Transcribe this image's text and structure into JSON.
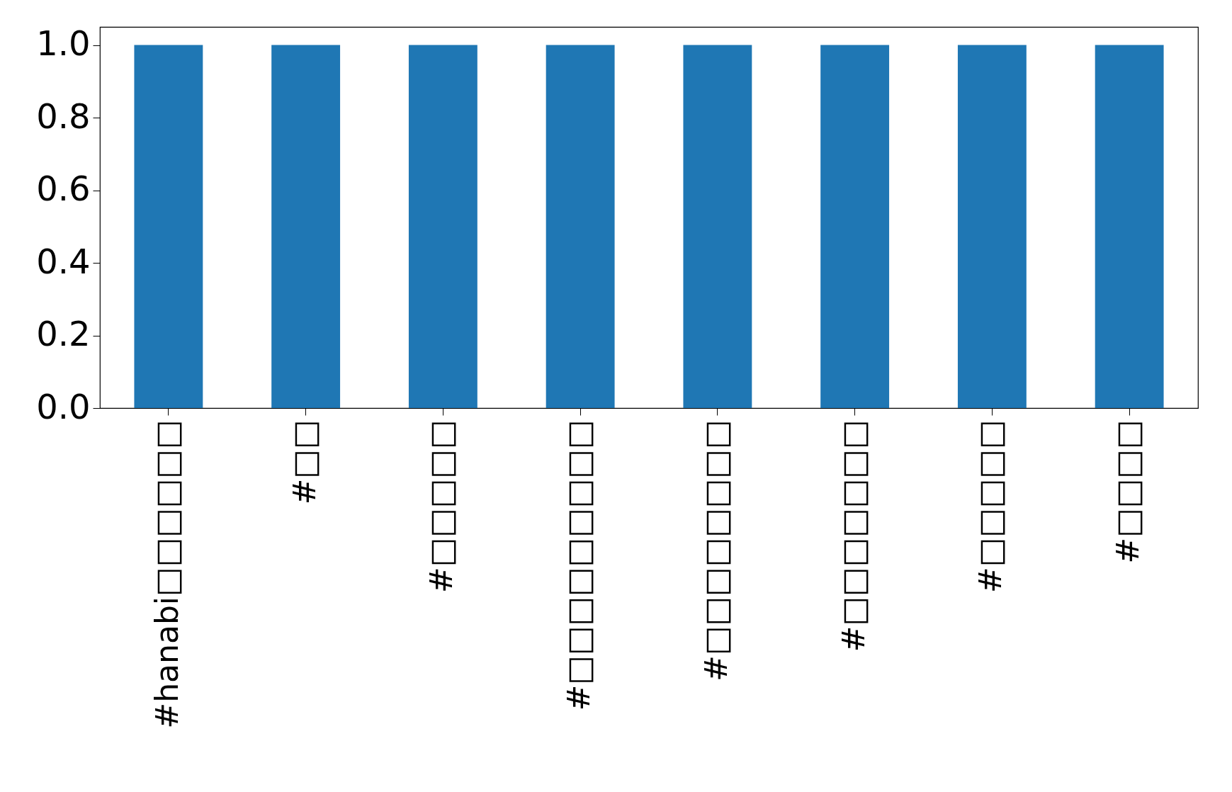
{
  "chart_data": {
    "type": "bar",
    "categories": [
      "#hanabi□□□□□□",
      "#□□",
      "#□□□□□",
      "#□□□□□□□□□",
      "#□□□□□□□□",
      "#□□□□□□□",
      "#□□□□□",
      "#□□□□"
    ],
    "values": [
      1,
      1,
      1,
      1,
      1,
      1,
      1,
      1
    ],
    "color": "#1f77b4",
    "ylim": [
      0,
      1.05
    ],
    "yticks": [
      {
        "value": 0,
        "label": "0.0"
      },
      0.2,
      0.4,
      0.6,
      0.8,
      {
        "value": 1,
        "label": "1.0"
      }
    ],
    "grid": false
  }
}
